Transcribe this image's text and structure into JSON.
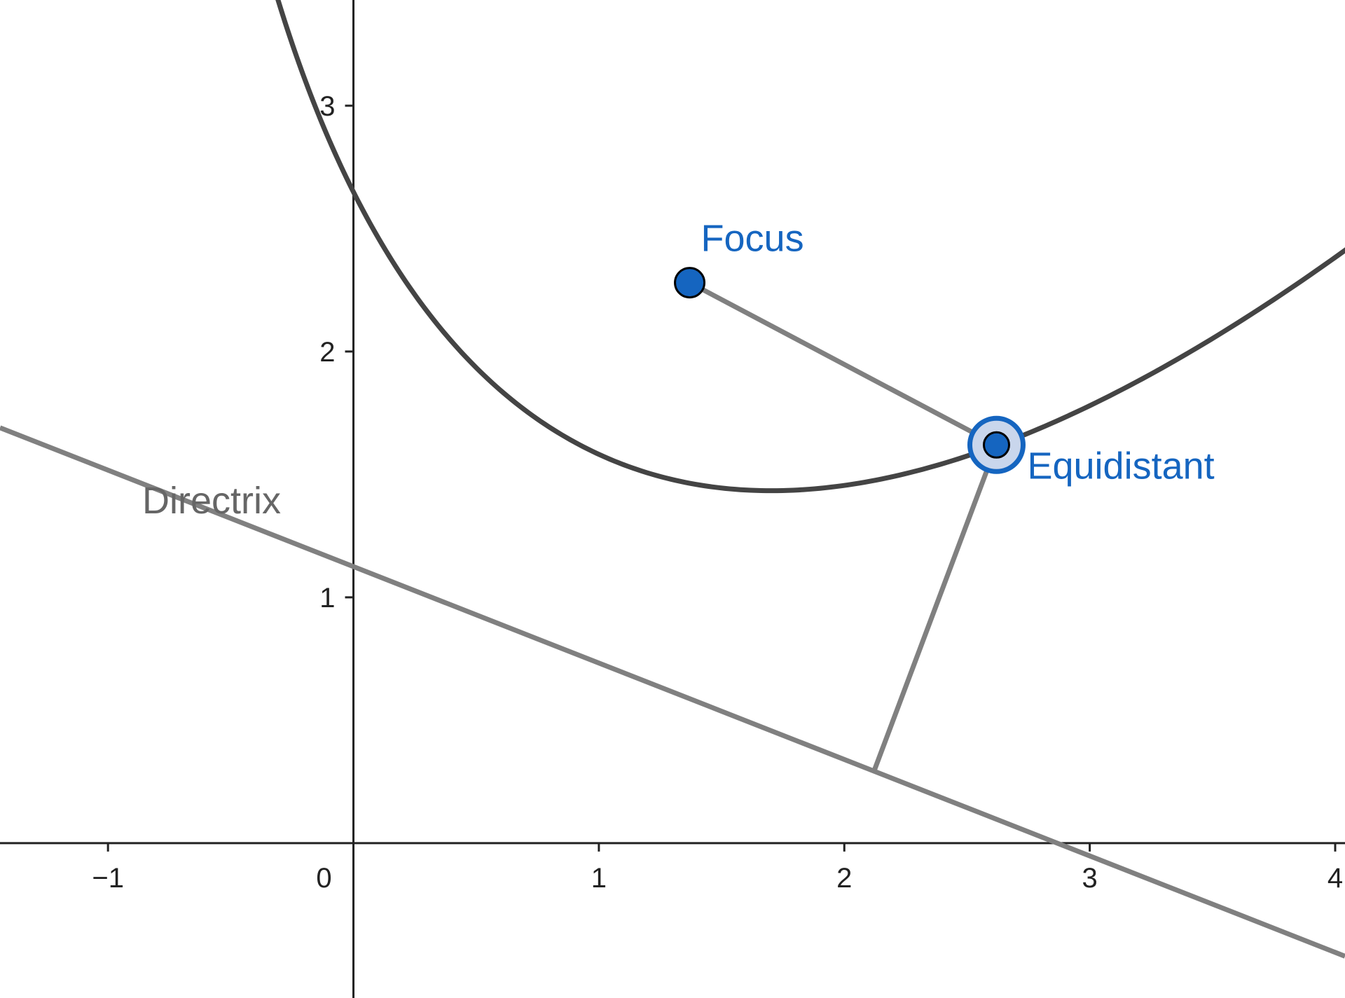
{
  "graph": {
    "x_range": [
      -1.44,
      4.04
    ],
    "y_range": [
      -0.63,
      3.43
    ],
    "x_ticks": [
      {
        "value": -1,
        "label": "−1"
      },
      {
        "value": 0,
        "label": "0"
      },
      {
        "value": 1,
        "label": "1"
      },
      {
        "value": 2,
        "label": "2"
      },
      {
        "value": 3,
        "label": "3"
      },
      {
        "value": 4,
        "label": "4"
      }
    ],
    "y_ticks": [
      {
        "value": 1,
        "label": "1"
      },
      {
        "value": 2,
        "label": "2"
      },
      {
        "value": 3,
        "label": "3"
      }
    ]
  },
  "objects": {
    "focus": {
      "label": "Focus",
      "x": 1.37,
      "y": 2.28,
      "color": "#1565c0"
    },
    "equidistant": {
      "label": "Equidistant",
      "x": 2.62,
      "y": 1.62,
      "color": "#1565c0"
    },
    "directrix": {
      "label": "Directrix",
      "color": "#666666",
      "p1": [
        -1.44,
        1.69
      ],
      "p2": [
        4.04,
        -0.46
      ]
    },
    "foot_point": {
      "x": 2.12,
      "y": 0.29
    }
  },
  "colors": {
    "parabola": "#444444",
    "segment": "#808080",
    "axis": "#222222",
    "point_fill": "#1565c0",
    "point_stroke": "#000000",
    "highlight_fill": "#c9d6ec"
  }
}
